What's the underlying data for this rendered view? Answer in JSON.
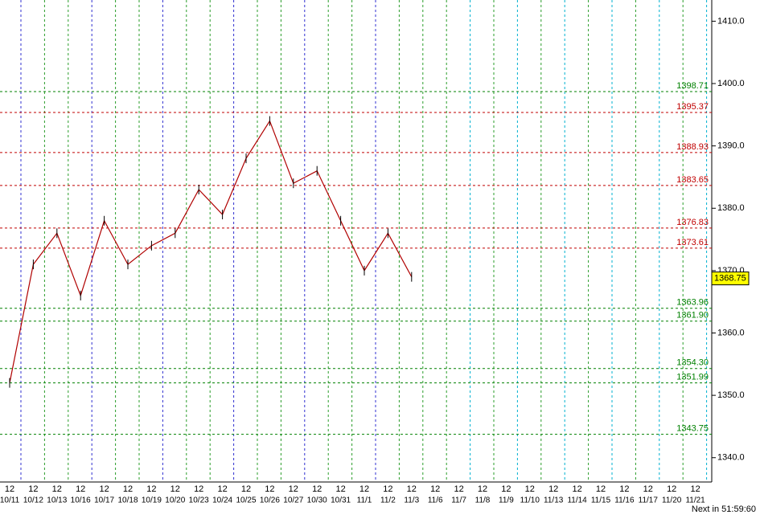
{
  "chart_data": {
    "type": "line",
    "categories": [
      "10/11",
      "10/12",
      "10/13",
      "10/16",
      "10/17",
      "10/18",
      "10/19",
      "10/20",
      "10/23",
      "10/24",
      "10/25",
      "10/26",
      "10/27",
      "10/30",
      "10/31",
      "11/1",
      "11/2",
      "11/3",
      "11/6",
      "11/7",
      "11/8",
      "11/9",
      "11/10",
      "11/13",
      "11/14",
      "11/15",
      "11/16",
      "11/17",
      "11/20",
      "11/21"
    ],
    "hour_labels": [
      "12",
      "12",
      "12",
      "12",
      "12",
      "12",
      "12",
      "12",
      "12",
      "12",
      "12",
      "12",
      "12",
      "12",
      "12",
      "12",
      "12",
      "12",
      "12",
      "12",
      "12",
      "12",
      "12",
      "12",
      "12",
      "12",
      "12",
      "12",
      "12",
      "12"
    ],
    "series": [
      {
        "color": "#000000",
        "values": [
          1352,
          1371,
          1376,
          1366,
          1378,
          1371,
          1374,
          1376,
          1383,
          1379,
          1388,
          1394,
          1384,
          1386,
          1378,
          1370,
          1376,
          1369,
          null,
          null,
          null,
          null,
          null,
          null,
          null,
          null,
          null,
          null,
          null,
          null
        ]
      }
    ],
    "ylim": [
      1336.1,
      1413.4
    ],
    "yticks": [
      {
        "value": 1340,
        "label": "1340.0"
      },
      {
        "value": 1350,
        "label": "1350.0"
      },
      {
        "value": 1360,
        "label": "1360.0"
      },
      {
        "value": 1370,
        "label": "1370.0"
      },
      {
        "value": 1380,
        "label": "1380.0"
      },
      {
        "value": 1390,
        "label": "1390.0"
      },
      {
        "value": 1400,
        "label": "1400.0"
      },
      {
        "value": 1410,
        "label": "1410.0"
      }
    ],
    "levels": [
      {
        "value": 1398.71,
        "color": "#008000"
      },
      {
        "value": 1395.37,
        "color": "#c00000"
      },
      {
        "value": 1388.93,
        "color": "#c00000"
      },
      {
        "value": 1383.65,
        "color": "#c00000"
      },
      {
        "value": 1376.83,
        "color": "#c00000"
      },
      {
        "value": 1373.61,
        "color": "#c00000"
      },
      {
        "value": 1363.96,
        "color": "#008000"
      },
      {
        "value": 1361.9,
        "label": "1361.90",
        "color": "#008000"
      },
      {
        "value": 1354.3,
        "label": "1354.30",
        "color": "#008000"
      },
      {
        "value": 1351.99,
        "color": "#008000"
      },
      {
        "value": 1343.75,
        "color": "#008000"
      }
    ],
    "current": {
      "value": 1368.75
    },
    "footer": "Next in 51:59:60"
  }
}
